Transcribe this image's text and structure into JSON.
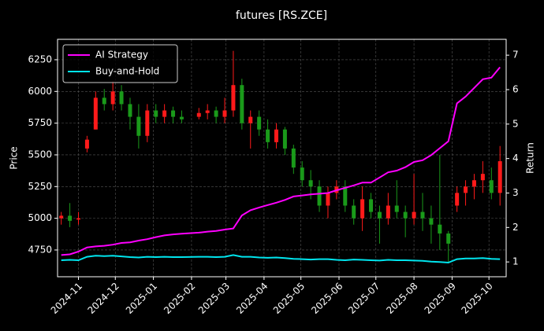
{
  "chart_data": {
    "type": "candlestick",
    "title": "futures [RS.ZCE]",
    "ylabel": "Price",
    "y2label": "Return",
    "x": [
      "2024-10-18",
      "2024-10-25",
      "2024-11-01",
      "2024-11-08",
      "2024-11-15",
      "2024-11-22",
      "2024-11-29",
      "2024-12-06",
      "2024-12-13",
      "2024-12-20",
      "2024-12-27",
      "2025-01-03",
      "2025-01-10",
      "2025-01-17",
      "2025-01-24",
      "2025-02-07",
      "2025-02-14",
      "2025-02-21",
      "2025-02-28",
      "2025-03-07",
      "2025-03-14",
      "2025-03-21",
      "2025-03-28",
      "2025-04-04",
      "2025-04-11",
      "2025-04-18",
      "2025-04-25",
      "2025-05-02",
      "2025-05-09",
      "2025-05-16",
      "2025-05-23",
      "2025-05-30",
      "2025-06-06",
      "2025-06-13",
      "2025-06-20",
      "2025-06-27",
      "2025-07-04",
      "2025-07-11",
      "2025-07-18",
      "2025-07-25",
      "2025-08-01",
      "2025-08-08",
      "2025-08-15",
      "2025-08-22",
      "2025-08-29",
      "2025-09-05",
      "2025-09-12",
      "2025-09-19",
      "2025-09-26",
      "2025-10-03",
      "2025-10-10"
    ],
    "open": [
      5000,
      5020,
      4990,
      5550,
      5700,
      5950,
      5900,
      6000,
      5900,
      5800,
      5650,
      5850,
      5800,
      5850,
      5800,
      5800,
      5830,
      5850,
      5800,
      5850,
      6050,
      5750,
      5800,
      5700,
      5600,
      5700,
      5550,
      5400,
      5300,
      5250,
      5100,
      5200,
      5250,
      5100,
      5000,
      5150,
      5050,
      5000,
      5100,
      5050,
      5000,
      5050,
      5000,
      4950,
      4880,
      5100,
      5200,
      5250,
      5300,
      5300,
      5200
    ],
    "high": [
      5050,
      5120,
      5050,
      5650,
      6000,
      6020,
      6080,
      6050,
      5950,
      5900,
      5900,
      5900,
      5900,
      5880,
      5850,
      5870,
      5900,
      5880,
      5950,
      6320,
      6100,
      5850,
      5850,
      5780,
      5750,
      5720,
      5580,
      5450,
      5380,
      5300,
      5250,
      5300,
      5300,
      5150,
      5250,
      5200,
      5100,
      5200,
      5300,
      5100,
      5350,
      5200,
      5100,
      5500,
      4900,
      5250,
      5300,
      5350,
      5450,
      5400,
      5570
    ],
    "low": [
      4950,
      4930,
      4950,
      5520,
      5700,
      5850,
      5850,
      5850,
      5700,
      5550,
      5600,
      5750,
      5750,
      5750,
      5750,
      5780,
      5780,
      5750,
      5750,
      5800,
      5700,
      5550,
      5650,
      5550,
      5550,
      5500,
      5350,
      5250,
      5150,
      5050,
      5000,
      5150,
      5050,
      4950,
      4900,
      5000,
      4800,
      4950,
      5000,
      4850,
      4950,
      4900,
      4800,
      4750,
      4650,
      5050,
      5100,
      5150,
      5200,
      5150,
      5100
    ],
    "close": [
      5020,
      4980,
      5000,
      5620,
      5950,
      5900,
      6000,
      5900,
      5800,
      5650,
      5850,
      5800,
      5850,
      5800,
      5780,
      5830,
      5850,
      5800,
      5850,
      6050,
      5750,
      5800,
      5700,
      5600,
      5700,
      5550,
      5400,
      5300,
      5250,
      5100,
      5200,
      5250,
      5100,
      5000,
      5150,
      5050,
      5000,
      5100,
      5050,
      5000,
      5050,
      5000,
      4950,
      4880,
      4800,
      5200,
      5250,
      5300,
      5350,
      5200,
      5450
    ],
    "up_color": "#ff1a1a",
    "down_color": "#1a9a1a",
    "series": [
      {
        "name": "AI Strategy",
        "color": "#ff00ff",
        "axis": "y2",
        "values": [
          1.2,
          1.22,
          1.3,
          1.42,
          1.45,
          1.47,
          1.5,
          1.55,
          1.57,
          1.62,
          1.66,
          1.72,
          1.77,
          1.8,
          1.82,
          1.85,
          1.88,
          1.9,
          1.94,
          1.97,
          2.35,
          2.5,
          2.58,
          2.65,
          2.72,
          2.8,
          2.9,
          2.93,
          2.96,
          2.98,
          3.0,
          3.08,
          3.15,
          3.22,
          3.3,
          3.3,
          3.45,
          3.6,
          3.65,
          3.75,
          3.9,
          3.95,
          4.1,
          4.3,
          4.5,
          5.6,
          5.8,
          6.05,
          6.3,
          6.35,
          6.65
        ]
      },
      {
        "name": "Buy-and-Hold",
        "color": "#00e5ee",
        "axis": "y2",
        "values": [
          1.05,
          1.06,
          1.05,
          1.15,
          1.18,
          1.17,
          1.18,
          1.16,
          1.14,
          1.13,
          1.15,
          1.14,
          1.15,
          1.14,
          1.14,
          1.15,
          1.15,
          1.14,
          1.15,
          1.2,
          1.15,
          1.15,
          1.13,
          1.12,
          1.13,
          1.11,
          1.09,
          1.08,
          1.07,
          1.08,
          1.08,
          1.06,
          1.05,
          1.07,
          1.06,
          1.05,
          1.04,
          1.06,
          1.05,
          1.05,
          1.04,
          1.03,
          1.01,
          1.0,
          0.98,
          1.08,
          1.1,
          1.1,
          1.11,
          1.09,
          1.08
        ]
      }
    ],
    "xlim": [
      "2024-10-15",
      "2025-10-15"
    ],
    "xticks": [
      {
        "value": "2024-11-01",
        "label": "2024-11"
      },
      {
        "value": "2024-12-01",
        "label": "2024-12"
      },
      {
        "value": "2025-01-01",
        "label": "2025-01"
      },
      {
        "value": "2025-02-01",
        "label": "2025-02"
      },
      {
        "value": "2025-03-01",
        "label": "2025-03"
      },
      {
        "value": "2025-04-01",
        "label": "2025-04"
      },
      {
        "value": "2025-05-01",
        "label": "2025-05"
      },
      {
        "value": "2025-06-01",
        "label": "2025-06"
      },
      {
        "value": "2025-07-01",
        "label": "2025-07"
      },
      {
        "value": "2025-08-01",
        "label": "2025-08"
      },
      {
        "value": "2025-09-01",
        "label": "2025-09"
      },
      {
        "value": "2025-10-01",
        "label": "2025-10"
      }
    ],
    "ylim": [
      4539,
      6411
    ],
    "yticks": [
      4750,
      5000,
      5250,
      5500,
      5750,
      6000,
      6250
    ],
    "y2lim": [
      0.57,
      7.46
    ],
    "y2ticks": [
      1,
      2,
      3,
      4,
      5,
      6,
      7
    ],
    "grid": true,
    "legend": "upper left"
  }
}
